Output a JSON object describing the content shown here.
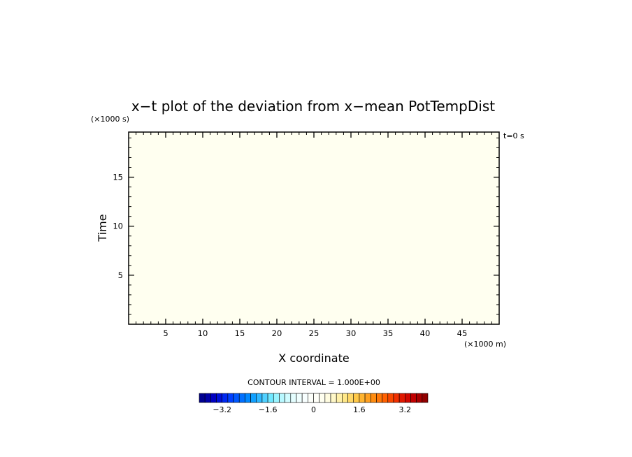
{
  "chart_data": {
    "type": "heatmap",
    "title": "x−t plot of the deviation from x−mean PotTempDist",
    "xlabel": "X coordinate",
    "ylabel": "Time",
    "x_unit_label": "(×1000 m)",
    "y_unit_label": "(×1000 s)",
    "corner_label": "t=0 s",
    "xlim": [
      0,
      50
    ],
    "ylim": [
      0,
      19.6
    ],
    "x_ticks": [
      5,
      10,
      15,
      20,
      25,
      30,
      35,
      40,
      45
    ],
    "y_ticks": [
      5,
      10,
      15
    ],
    "field_color": "#fffff0",
    "field_description_value": 0,
    "contour_interval_text": "CONTOUR INTERVAL = 1.000E+00",
    "colorbar": {
      "min": -4.0,
      "max": 4.0,
      "step": 0.2,
      "tick_labels": [
        "−3.2",
        "−1.6",
        "0",
        "1.6",
        "3.2"
      ],
      "tick_values": [
        -3.2,
        -1.6,
        0,
        1.6,
        3.2
      ],
      "colors": [
        "#000090",
        "#0000a8",
        "#0000c0",
        "#0010d8",
        "#0028f0",
        "#0040ff",
        "#0058ff",
        "#0070ff",
        "#0088ff",
        "#10a0ff",
        "#30b8ff",
        "#50d0ff",
        "#70e8ff",
        "#98f4ff",
        "#b8f8ff",
        "#d0fcff",
        "#e4feff",
        "#f0ffff",
        "#f8ffff",
        "#fdfffa",
        "#fffff8",
        "#fffff0",
        "#fffce0",
        "#fff8c8",
        "#fff0a8",
        "#ffe888",
        "#ffd868",
        "#ffc848",
        "#ffb430",
        "#ffa020",
        "#ff8c10",
        "#ff7808",
        "#ff6000",
        "#f84800",
        "#f03000",
        "#e01800",
        "#d00800",
        "#c00000",
        "#a80000",
        "#900000"
      ]
    }
  }
}
